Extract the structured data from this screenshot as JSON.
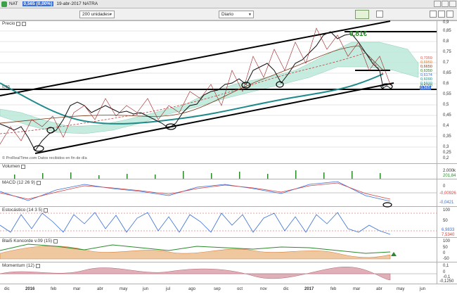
{
  "window": {
    "ticker": "NAT",
    "price": "0,565 (0,00%)",
    "date_name": "19-abr-2017 NATRA"
  },
  "toolbar": {
    "units_label": "200 unidades",
    "period_label": "Diario"
  },
  "panels": {
    "price": "Precio",
    "volume": "Volumen",
    "macd": "MACD (12 26 9)",
    "stochastic": "Estocástico (14 3 5)",
    "blai5": "Blai5 Koncorde v.09 (15)",
    "momentum": "Momentum (12)"
  },
  "annotations": {
    "target": "0,81€",
    "footer": "© ProRealTime.com  Datos recibidos en fin de día",
    "left_level": "0,60"
  },
  "price_axis": [
    "0,9",
    "0,85",
    "0,8",
    "0,75",
    "0,7",
    "0,65",
    "0,6",
    "0,55",
    "0,5",
    "0,45",
    "0,4",
    "0,35",
    "0,3",
    "0,25",
    "0,2"
  ],
  "price_tags": [
    {
      "text": "0,7359",
      "color": "#e05050"
    },
    {
      "text": "0,6950",
      "color": "#e07a20"
    },
    {
      "text": "0,6650",
      "color": "#7a3a1a"
    },
    {
      "text": "0,6350",
      "color": "#2a7a2a"
    },
    {
      "text": "0,6174",
      "color": "#3a6fd8"
    },
    {
      "text": "0,6090",
      "color": "#208a8a"
    },
    {
      "text": "0,5910",
      "color": "#208a8a"
    },
    {
      "text": "0,5760",
      "color": "#2a7a2a"
    },
    {
      "text": "0,565",
      "color": "#ffffff",
      "bg": "#3a6fd8"
    }
  ],
  "volume_axis": {
    "top": "2.000k",
    "last": "201,84"
  },
  "macd_axis": {
    "top": "0",
    "v1": "-0,00926",
    "v2": "-0,0421"
  },
  "stoch_axis": {
    "top": "100",
    "mid": "50",
    "bottom": "0",
    "v1": "6,9833",
    "v2": "7,5340"
  },
  "blai5_axis": {
    "top": "100",
    "mid": "50",
    "v1": "0",
    "bottom": "-50"
  },
  "momentum_axis": {
    "top": "0,1",
    "mid": "0",
    "v1": "-0,1",
    "bottom": "-0,1250"
  },
  "x_axis": [
    "dic",
    "2016",
    "feb",
    "mar",
    "abr",
    "may",
    "jun",
    "jul",
    "ago",
    "sep",
    "oct",
    "nov",
    "dic",
    "2017",
    "feb",
    "mar",
    "abr",
    "may",
    "jun"
  ],
  "colors": {
    "grid": "#d8d8d8",
    "channel": "#000000",
    "ema_teal": "#1f8a8a",
    "cloud_green": "#a8e8a0",
    "cloud_blue": "#a8e0f0",
    "target": "#1a8a1a"
  }
}
